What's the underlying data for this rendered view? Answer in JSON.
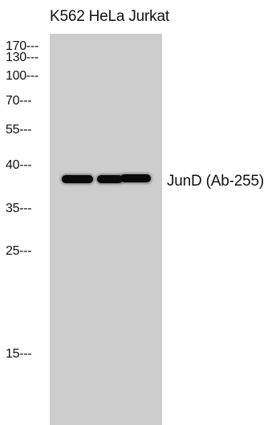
{
  "lanes": {
    "header": "K562 HeLa Jurkat"
  },
  "markers": [
    {
      "label": "170---",
      "kda": 170
    },
    {
      "label": "130---",
      "kda": 130
    },
    {
      "label": "100---",
      "kda": 100
    },
    {
      "label": "70---",
      "kda": 70
    },
    {
      "label": "55---",
      "kda": 55
    },
    {
      "label": "40---",
      "kda": 40
    },
    {
      "label": "35---",
      "kda": 35
    },
    {
      "label": "25---",
      "kda": 25
    },
    {
      "label": "15---",
      "kda": 15
    }
  ],
  "band": {
    "label": "JunD (Ab-255)"
  },
  "colors": {
    "gel": "#cdcdcd",
    "band": "#0a0a0a"
  }
}
